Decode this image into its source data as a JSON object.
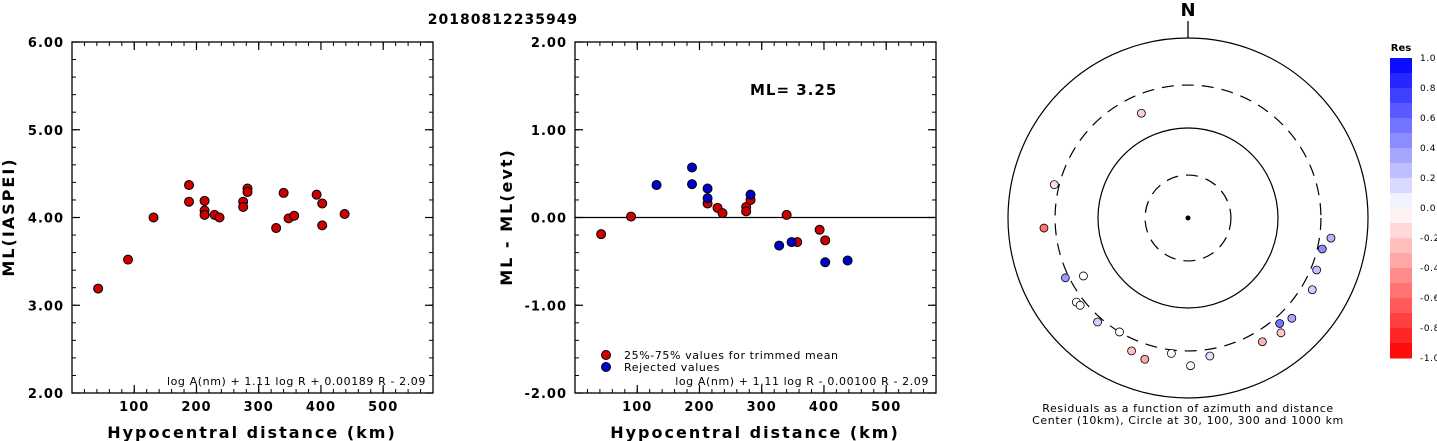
{
  "title": "20180812235949",
  "chart_data": [
    {
      "type": "scatter",
      "xlabel": "Hypocentral distance (km)",
      "ylabel": "ML(IASPEI)",
      "xlim": [
        0,
        580
      ],
      "ylim": [
        2.0,
        6.0
      ],
      "xticks": [
        "100",
        "200",
        "300",
        "400",
        "500"
      ],
      "yticks": [
        "2.00",
        "3.00",
        "4.00",
        "5.00",
        "6.00"
      ],
      "formula": "log A(nm) + 1.11 log R + 0.00189 R - 2.09",
      "grid": false,
      "series": [
        {
          "color": "#cc0000",
          "points": [
            [
              42,
              3.19
            ],
            [
              90,
              3.52
            ],
            [
              131,
              4.0
            ],
            [
              188,
              4.37
            ],
            [
              188,
              4.18
            ],
            [
              213,
              4.19
            ],
            [
              213,
              4.08
            ],
            [
              213,
              4.03
            ],
            [
              229,
              4.03
            ],
            [
              237,
              4.0
            ],
            [
              275,
              4.18
            ],
            [
              275,
              4.12
            ],
            [
              282,
              4.33
            ],
            [
              282,
              4.29
            ],
            [
              328,
              3.88
            ],
            [
              340,
              4.28
            ],
            [
              348,
              3.99
            ],
            [
              357,
              4.02
            ],
            [
              393,
              4.26
            ],
            [
              402,
              4.16
            ],
            [
              402,
              3.91
            ],
            [
              438,
              4.04
            ]
          ]
        }
      ]
    },
    {
      "type": "scatter",
      "xlabel": "Hypocentral distance (km)",
      "ylabel": "ML - ML(evt)",
      "xlim": [
        0,
        580
      ],
      "ylim": [
        -2.0,
        2.0
      ],
      "xticks": [
        "100",
        "200",
        "300",
        "400",
        "500"
      ],
      "yticks": [
        "-2.00",
        "-1.00",
        "0.00",
        "1.00",
        "2.00"
      ],
      "annotation": "ML= 3.25",
      "formula": "log A(nm) + 1.11 log R - 0.00100 R - 2.09",
      "reference_line": 0.0,
      "legend": {
        "placement": "bottom-left",
        "items": [
          {
            "label": "25%-75% values for trimmed mean",
            "color": "#cc0000"
          },
          {
            "label": "Rejected values",
            "color": "#0000cc"
          }
        ]
      },
      "series": [
        {
          "name": "25%-75% values for trimmed mean",
          "color": "#cc0000",
          "points": [
            [
              42,
              -0.19
            ],
            [
              90,
              0.01
            ],
            [
              213,
              0.16
            ],
            [
              229,
              0.11
            ],
            [
              237,
              0.05
            ],
            [
              275,
              0.12
            ],
            [
              275,
              0.07
            ],
            [
              282,
              0.2
            ],
            [
              340,
              0.03
            ],
            [
              357,
              -0.28
            ],
            [
              393,
              -0.14
            ],
            [
              402,
              -0.26
            ]
          ]
        },
        {
          "name": "Rejected values",
          "color": "#0000cc",
          "points": [
            [
              131,
              0.37
            ],
            [
              188,
              0.57
            ],
            [
              188,
              0.38
            ],
            [
              213,
              0.33
            ],
            [
              213,
              0.22
            ],
            [
              282,
              0.26
            ],
            [
              328,
              -0.32
            ],
            [
              348,
              -0.28
            ],
            [
              402,
              -0.51
            ],
            [
              438,
              -0.49
            ]
          ]
        }
      ]
    },
    {
      "type": "polar-scatter",
      "north_label": "N",
      "caption_line1": "Residuals as a function of azimuth and distance",
      "caption_line2": "Center (10km), Circle at 30, 100, 300 and 1000 km",
      "rings_km": [
        30,
        100,
        300,
        1000
      ],
      "colorbar": {
        "label": "Res",
        "ticks": [
          "1.0",
          "0.8",
          "0.6",
          "0.4",
          "0.2",
          "0.0",
          "-0.2",
          "-0.4",
          "-0.6",
          "-0.8",
          "-1.0"
        ],
        "positive_color": "#0000ff",
        "negative_color": "#ff0000"
      },
      "points": [
        {
          "azimuth": 336,
          "distance_km": 188,
          "res": -0.18
        },
        {
          "azimuth": 284,
          "distance_km": 340,
          "res": -0.12
        },
        {
          "azimuth": 266,
          "distance_km": 402,
          "res": -0.55
        },
        {
          "azimuth": 241,
          "distance_km": 213,
          "res": 0.0
        },
        {
          "azimuth": 244,
          "distance_km": 328,
          "res": 0.4
        },
        {
          "azimuth": 233,
          "distance_km": 357,
          "res": 0.0
        },
        {
          "azimuth": 231,
          "distance_km": 348,
          "res": 0.0
        },
        {
          "azimuth": 221,
          "distance_km": 340,
          "res": 0.18
        },
        {
          "azimuth": 211,
          "distance_km": 300,
          "res": 0.0
        },
        {
          "azimuth": 203,
          "distance_km": 402,
          "res": -0.25
        },
        {
          "azimuth": 197,
          "distance_km": 438,
          "res": -0.35
        },
        {
          "azimuth": 187,
          "distance_km": 328,
          "res": 0.0
        },
        {
          "azimuth": 179,
          "distance_km": 438,
          "res": 0.0
        },
        {
          "azimuth": 171,
          "distance_km": 357,
          "res": 0.12
        },
        {
          "azimuth": 149,
          "distance_km": 402,
          "res": -0.3
        },
        {
          "azimuth": 139,
          "distance_km": 357,
          "res": 0.55
        },
        {
          "azimuth": 134,
          "distance_km": 402,
          "res": 0.35
        },
        {
          "azimuth": 141,
          "distance_km": 438,
          "res": -0.22
        },
        {
          "azimuth": 120,
          "distance_km": 393,
          "res": 0.18
        },
        {
          "azimuth": 112,
          "distance_km": 348,
          "res": 0.25
        },
        {
          "azimuth": 103,
          "distance_km": 340,
          "res": 0.45
        },
        {
          "azimuth": 98,
          "distance_km": 402,
          "res": 0.3
        }
      ]
    }
  ]
}
